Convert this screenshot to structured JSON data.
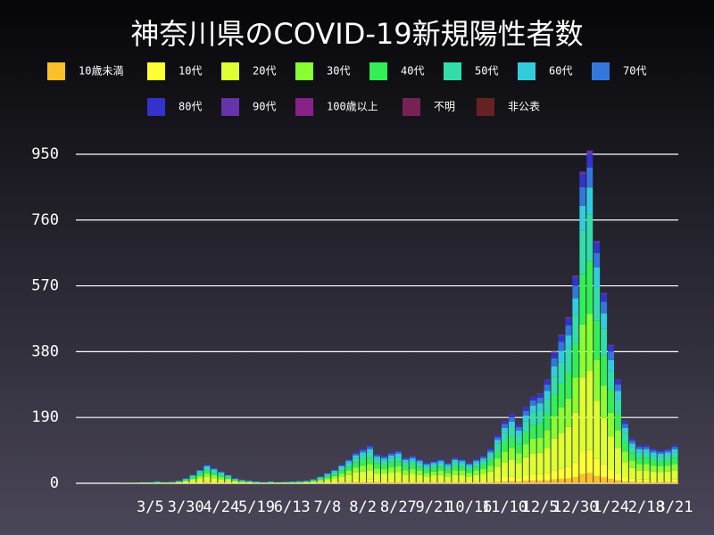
{
  "chart_data": {
    "type": "stacked_bar",
    "title": "神奈川県のCOVID-19新規陽性者数",
    "categories": [
      null,
      null,
      null,
      null,
      null,
      null,
      null,
      null,
      null,
      null,
      "3/5",
      null,
      null,
      null,
      null,
      "3/30",
      null,
      null,
      null,
      null,
      "4/24",
      null,
      null,
      null,
      null,
      "5/19",
      null,
      null,
      null,
      null,
      "6/13",
      null,
      null,
      null,
      null,
      "7/8",
      null,
      null,
      null,
      null,
      "8/2",
      null,
      null,
      null,
      null,
      "8/27",
      null,
      null,
      null,
      null,
      "9/21",
      null,
      null,
      null,
      null,
      "10/16",
      null,
      null,
      null,
      null,
      "11/10",
      null,
      null,
      null,
      null,
      "12/5",
      null,
      null,
      null,
      null,
      "12/30",
      null,
      null,
      null,
      null,
      "1/24",
      null,
      null,
      null,
      null,
      "2/18",
      null,
      null,
      null,
      "3/21"
    ],
    "series": [
      {
        "name": "10歳未満",
        "color": "#fbbf2b",
        "values": [
          0,
          0,
          0,
          0,
          0,
          0,
          0,
          0,
          0,
          0,
          0,
          0,
          0,
          0,
          0,
          0,
          1,
          1,
          2,
          1,
          1,
          1,
          0,
          0,
          0,
          0,
          0,
          0,
          0,
          0,
          0,
          0,
          0,
          0,
          1,
          1,
          1,
          2,
          2,
          3,
          3,
          3,
          3,
          2,
          3,
          3,
          2,
          2,
          2,
          2,
          2,
          2,
          2,
          2,
          2,
          2,
          2,
          2,
          3,
          4,
          5,
          6,
          5,
          7,
          8,
          8,
          9,
          11,
          13,
          14,
          18,
          27,
          29,
          21,
          17,
          12,
          9,
          5,
          4,
          3,
          3,
          3,
          3,
          3,
          3
        ]
      },
      {
        "name": "10代",
        "color": "#ffff33",
        "values": [
          0,
          0,
          0,
          0,
          0,
          0,
          0,
          0,
          0,
          0,
          0,
          0,
          0,
          0,
          1,
          1,
          2,
          3,
          4,
          3,
          2,
          2,
          1,
          1,
          1,
          0,
          0,
          0,
          0,
          0,
          0,
          0,
          1,
          1,
          1,
          2,
          3,
          4,
          5,
          6,
          7,
          8,
          6,
          6,
          6,
          7,
          5,
          6,
          5,
          4,
          5,
          5,
          4,
          5,
          5,
          4,
          5,
          6,
          7,
          10,
          13,
          14,
          12,
          15,
          18,
          18,
          21,
          27,
          30,
          34,
          42,
          63,
          67,
          49,
          39,
          28,
          21,
          13,
          9,
          8,
          8,
          7,
          7,
          7,
          8
        ]
      },
      {
        "name": "20代",
        "color": "#ddff33",
        "values": [
          0,
          0,
          0,
          0,
          0,
          0,
          1,
          1,
          1,
          1,
          1,
          1,
          1,
          1,
          2,
          4,
          6,
          10,
          13,
          11,
          8,
          6,
          4,
          2,
          2,
          1,
          1,
          1,
          1,
          1,
          1,
          2,
          2,
          3,
          5,
          7,
          10,
          13,
          17,
          22,
          24,
          26,
          20,
          19,
          22,
          23,
          18,
          19,
          17,
          14,
          16,
          17,
          14,
          18,
          17,
          14,
          17,
          19,
          24,
          34,
          43,
          48,
          41,
          53,
          60,
          62,
          72,
          91,
          103,
          115,
          144,
          216,
          230,
          168,
          132,
          96,
          72,
          43,
          31,
          26,
          26,
          24,
          23,
          24,
          26
        ]
      },
      {
        "name": "30代",
        "color": "#88ff33",
        "values": [
          0,
          0,
          0,
          0,
          0,
          0,
          0,
          0,
          0,
          1,
          1,
          1,
          1,
          1,
          1,
          3,
          4,
          7,
          9,
          8,
          6,
          4,
          3,
          2,
          1,
          1,
          1,
          1,
          1,
          1,
          1,
          1,
          1,
          2,
          3,
          5,
          7,
          9,
          12,
          15,
          17,
          19,
          14,
          14,
          15,
          16,
          13,
          14,
          12,
          10,
          11,
          12,
          10,
          13,
          12,
          10,
          12,
          14,
          17,
          24,
          31,
          34,
          29,
          37,
          43,
          44,
          51,
          65,
          73,
          82,
          102,
          153,
          163,
          119,
          94,
          68,
          51,
          31,
          22,
          19,
          19,
          17,
          16,
          17,
          19
        ]
      },
      {
        "name": "40代",
        "color": "#33ee55",
        "values": [
          0,
          0,
          0,
          0,
          0,
          0,
          0,
          0,
          0,
          0,
          0,
          1,
          0,
          1,
          1,
          2,
          4,
          6,
          9,
          7,
          6,
          4,
          2,
          2,
          1,
          1,
          0,
          1,
          0,
          1,
          1,
          1,
          1,
          2,
          3,
          5,
          6,
          9,
          11,
          14,
          16,
          18,
          14,
          13,
          14,
          15,
          12,
          13,
          11,
          10,
          10,
          11,
          10,
          12,
          11,
          10,
          11,
          13,
          16,
          22,
          29,
          32,
          27,
          35,
          40,
          42,
          48,
          61,
          69,
          77,
          96,
          144,
          154,
          112,
          88,
          64,
          48,
          29,
          21,
          18,
          18,
          16,
          15,
          16,
          18
        ]
      },
      {
        "name": "50代",
        "color": "#33ddaa",
        "values": [
          0,
          0,
          0,
          0,
          0,
          0,
          0,
          0,
          1,
          1,
          1,
          1,
          1,
          1,
          1,
          2,
          4,
          6,
          8,
          6,
          5,
          4,
          2,
          1,
          1,
          1,
          1,
          1,
          1,
          1,
          1,
          1,
          1,
          2,
          3,
          4,
          6,
          8,
          10,
          13,
          14,
          15,
          12,
          11,
          13,
          13,
          11,
          11,
          10,
          8,
          9,
          10,
          8,
          11,
          10,
          8,
          10,
          11,
          14,
          20,
          25,
          28,
          24,
          31,
          35,
          36,
          42,
          53,
          60,
          67,
          84,
          126,
          134,
          98,
          77,
          56,
          42,
          25,
          18,
          15,
          15,
          14,
          13,
          14,
          15
        ]
      },
      {
        "name": "60代",
        "color": "#33ccdd",
        "values": [
          0,
          0,
          0,
          0,
          0,
          0,
          0,
          0,
          0,
          0,
          0,
          1,
          0,
          0,
          1,
          1,
          2,
          3,
          4,
          4,
          3,
          2,
          1,
          1,
          1,
          1,
          0,
          1,
          0,
          0,
          1,
          1,
          1,
          1,
          2,
          3,
          3,
          4,
          6,
          7,
          8,
          9,
          7,
          6,
          7,
          8,
          6,
          6,
          6,
          5,
          5,
          6,
          5,
          6,
          6,
          5,
          6,
          6,
          8,
          11,
          14,
          16,
          14,
          18,
          20,
          21,
          24,
          30,
          34,
          38,
          48,
          72,
          77,
          56,
          44,
          32,
          24,
          14,
          10,
          9,
          9,
          8,
          8,
          8,
          9
        ]
      },
      {
        "name": "70代",
        "color": "#3377dd",
        "values": [
          0,
          0,
          0,
          0,
          0,
          0,
          0,
          0,
          0,
          0,
          0,
          0,
          0,
          0,
          1,
          1,
          1,
          2,
          3,
          3,
          2,
          1,
          1,
          1,
          1,
          0,
          0,
          0,
          0,
          0,
          0,
          0,
          1,
          1,
          1,
          2,
          2,
          3,
          4,
          5,
          6,
          7,
          5,
          5,
          5,
          6,
          4,
          5,
          4,
          4,
          4,
          4,
          4,
          4,
          4,
          4,
          4,
          5,
          6,
          8,
          11,
          12,
          10,
          13,
          15,
          16,
          18,
          23,
          26,
          29,
          36,
          54,
          58,
          42,
          33,
          24,
          18,
          11,
          8,
          7,
          7,
          6,
          6,
          6,
          7
        ]
      },
      {
        "name": "80代",
        "color": "#3333cc",
        "values": [
          0,
          0,
          0,
          0,
          0,
          0,
          0,
          0,
          0,
          0,
          0,
          0,
          0,
          0,
          0,
          1,
          1,
          2,
          2,
          2,
          1,
          1,
          1,
          0,
          0,
          0,
          0,
          0,
          0,
          0,
          0,
          0,
          0,
          0,
          1,
          1,
          2,
          2,
          3,
          4,
          4,
          4,
          3,
          3,
          4,
          4,
          3,
          3,
          3,
          2,
          3,
          3,
          2,
          3,
          3,
          2,
          3,
          3,
          4,
          6,
          7,
          8,
          7,
          9,
          10,
          10,
          12,
          15,
          17,
          19,
          24,
          36,
          38,
          28,
          22,
          16,
          12,
          7,
          5,
          4,
          4,
          4,
          4,
          4,
          4
        ]
      },
      {
        "name": "90代",
        "color": "#6633aa",
        "values": [
          0,
          0,
          0,
          0,
          0,
          0,
          0,
          0,
          0,
          0,
          0,
          0,
          0,
          0,
          0,
          0,
          0,
          0,
          1,
          0,
          1,
          0,
          0,
          0,
          0,
          0,
          0,
          0,
          0,
          0,
          0,
          0,
          0,
          0,
          0,
          0,
          0,
          1,
          0,
          1,
          1,
          1,
          1,
          1,
          1,
          0,
          1,
          1,
          0,
          1,
          0,
          0,
          1,
          1,
          0,
          1,
          0,
          1,
          1,
          1,
          2,
          2,
          1,
          2,
          1,
          3,
          3,
          4,
          5,
          5,
          6,
          9,
          10,
          7,
          4,
          4,
          3,
          2,
          2,
          1,
          1,
          1,
          0,
          1,
          1
        ]
      },
      {
        "name": "100歳以上",
        "color": "#882288",
        "values": [
          0,
          0,
          0,
          0,
          0,
          0,
          0,
          0,
          0,
          0,
          0,
          0,
          0,
          0,
          0,
          0,
          0,
          0,
          0,
          0,
          0,
          0,
          0,
          0,
          0,
          0,
          0,
          0,
          0,
          0,
          0,
          0,
          0,
          0,
          0,
          0,
          0,
          0,
          0,
          0,
          0,
          0,
          0,
          0,
          0,
          0,
          0,
          0,
          0,
          0,
          0,
          0,
          0,
          0,
          0,
          0,
          0,
          0,
          0,
          0,
          0,
          0,
          0,
          0,
          0,
          0,
          0,
          0,
          0,
          0,
          0,
          0,
          1,
          0,
          0,
          0,
          0,
          0,
          0,
          0,
          0,
          0,
          0,
          0,
          0
        ]
      },
      {
        "name": "不明",
        "color": "#772255",
        "values": [
          0,
          0,
          0,
          0,
          0,
          0,
          0,
          0,
          0,
          0,
          0,
          0,
          0,
          0,
          0,
          0,
          0,
          0,
          0,
          0,
          0,
          0,
          0,
          0,
          0,
          0,
          0,
          0,
          0,
          0,
          0,
          0,
          0,
          0,
          0,
          0,
          0,
          0,
          0,
          0,
          0,
          0,
          0,
          0,
          0,
          0,
          0,
          0,
          0,
          0,
          0,
          0,
          0,
          0,
          0,
          0,
          0,
          0,
          0,
          0,
          0,
          0,
          0,
          0,
          0,
          0,
          0,
          0,
          0,
          0,
          0,
          0,
          0,
          0,
          0,
          0,
          0,
          0,
          0,
          0,
          0,
          0,
          0,
          0,
          0
        ]
      },
      {
        "name": "非公表",
        "color": "#662222",
        "values": [
          0,
          0,
          0,
          0,
          0,
          0,
          0,
          0,
          0,
          0,
          0,
          0,
          0,
          0,
          0,
          0,
          0,
          0,
          0,
          0,
          0,
          0,
          0,
          0,
          0,
          0,
          0,
          0,
          0,
          0,
          0,
          0,
          0,
          0,
          0,
          0,
          0,
          0,
          0,
          0,
          0,
          0,
          0,
          0,
          0,
          0,
          0,
          0,
          0,
          0,
          0,
          0,
          0,
          0,
          0,
          0,
          0,
          0,
          0,
          0,
          0,
          0,
          0,
          0,
          0,
          0,
          0,
          0,
          0,
          0,
          0,
          0,
          0,
          0,
          0,
          0,
          0,
          0,
          0,
          0,
          0,
          0,
          0,
          0,
          0
        ]
      }
    ],
    "ylim": [
      0,
      1022
    ],
    "yticks": [
      0,
      190,
      380,
      570,
      760,
      950
    ],
    "grid": true
  }
}
